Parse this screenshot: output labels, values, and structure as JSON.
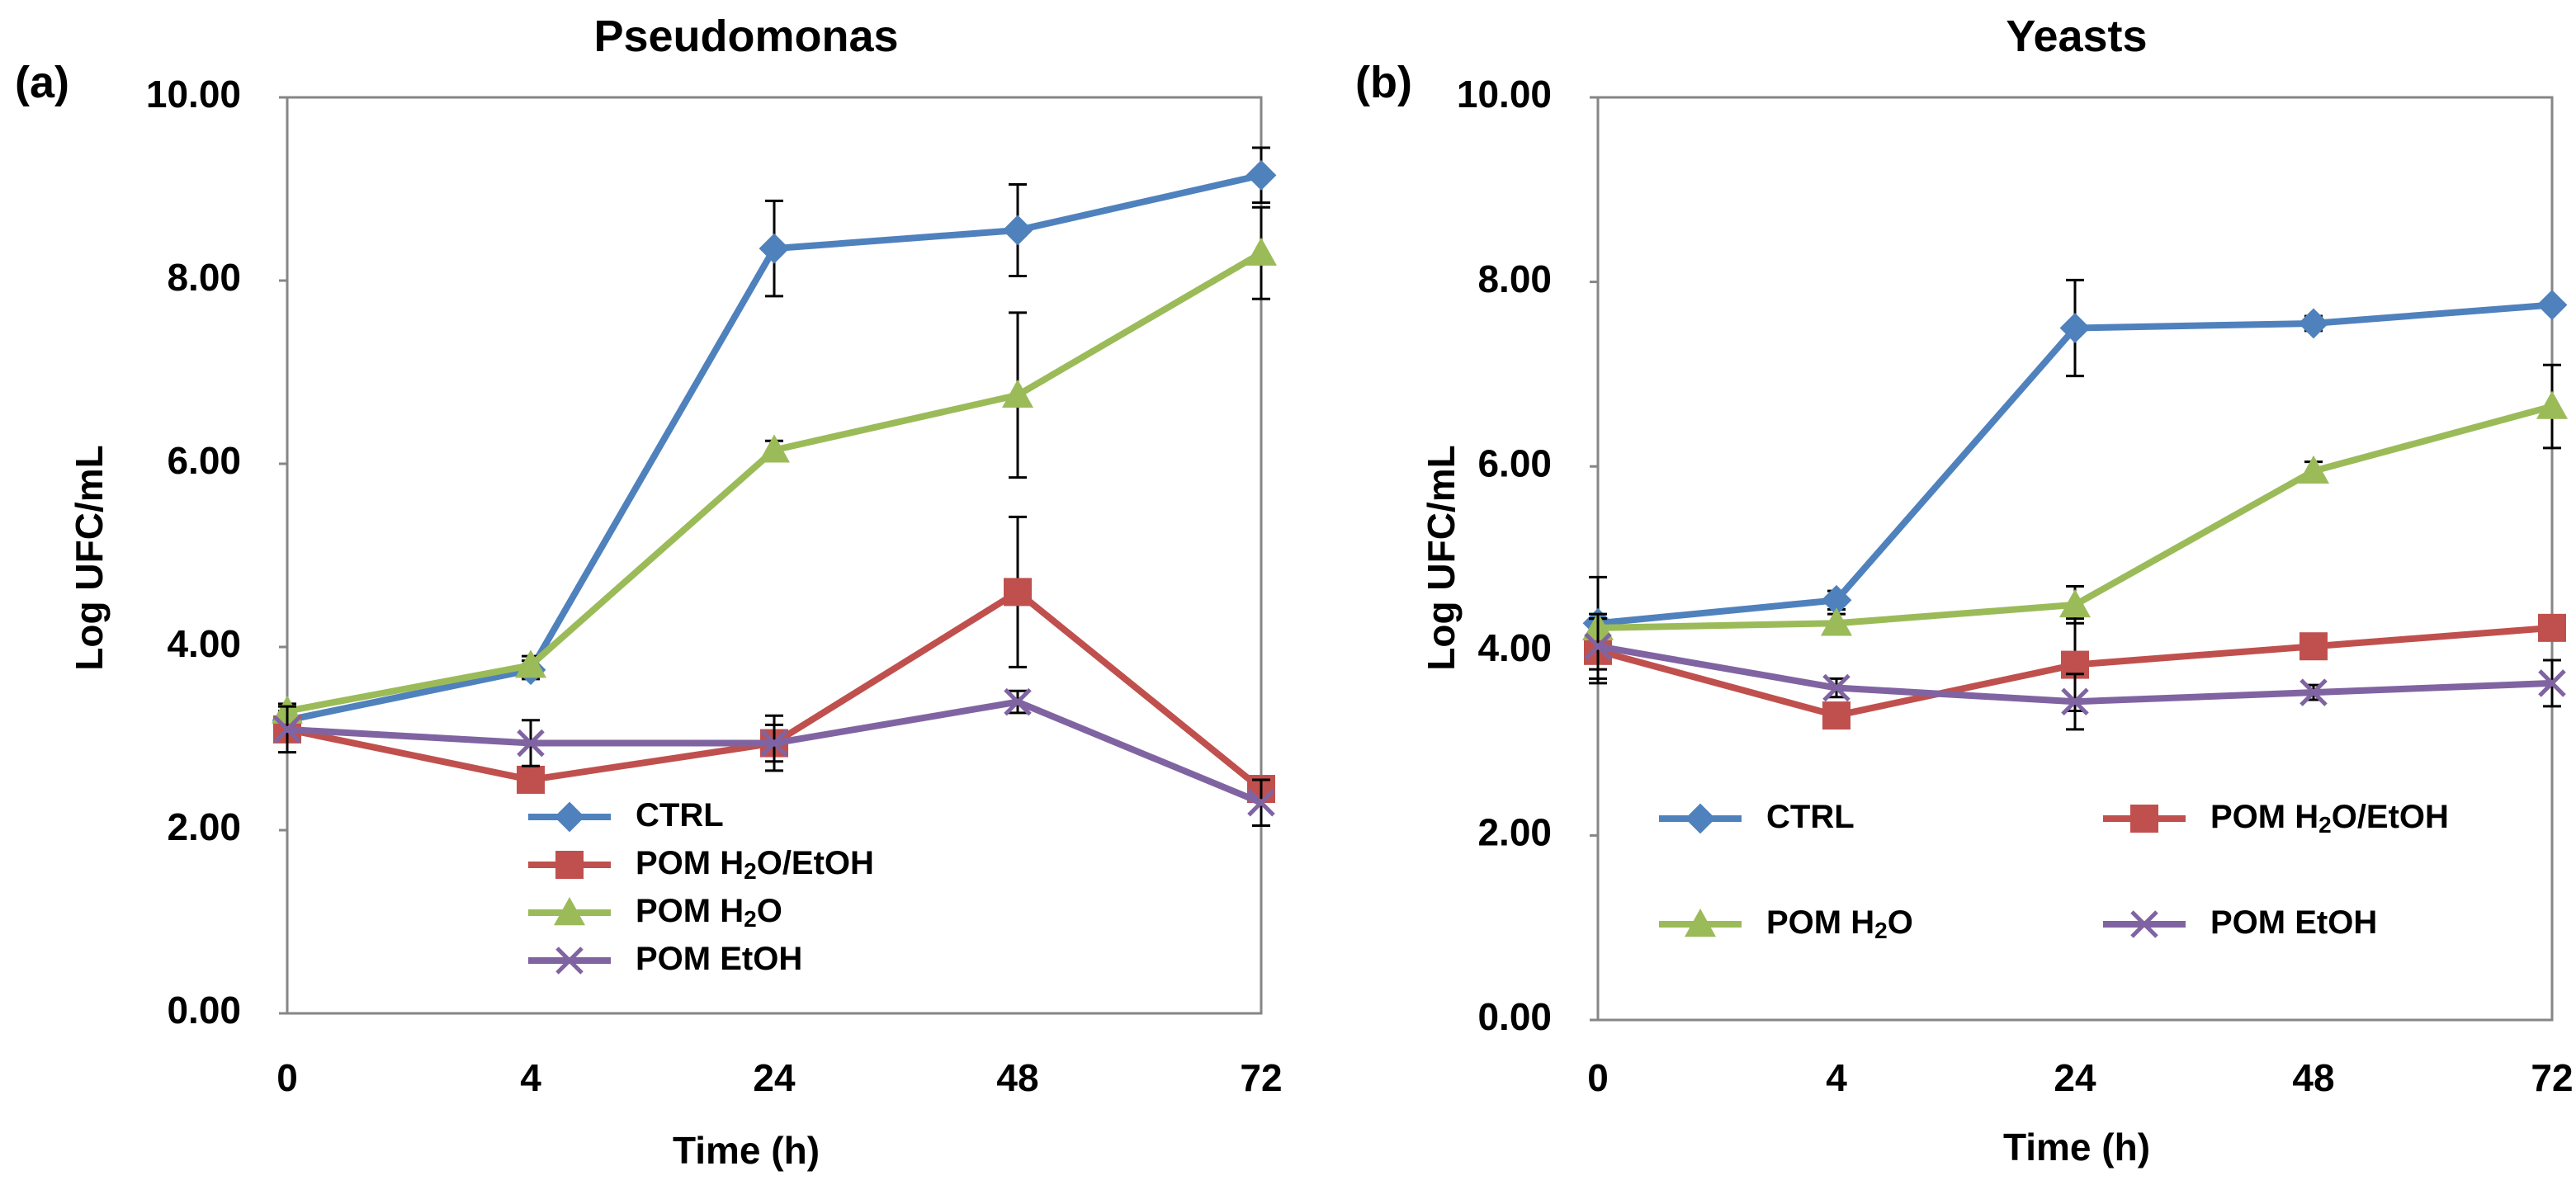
{
  "chart_data": [
    {
      "type": "line",
      "panel_label": "(a)",
      "title": "Pseudomonas",
      "xlabel": "Time (h)",
      "ylabel": "Log UFC/mL",
      "categories": [
        "0",
        "4",
        "24",
        "48",
        "72"
      ],
      "ylim": [
        0,
        10
      ],
      "yticks": [
        "0.00",
        "2.00",
        "4.00",
        "6.00",
        "8.00",
        "10.00"
      ],
      "legend_position": "bottom-center",
      "legend_layout": "single-column",
      "series": [
        {
          "name": "CTRL",
          "legend": {
            "main": "CTRL"
          },
          "color": "#4F81BD",
          "marker": "diamond",
          "values": [
            3.2,
            3.75,
            8.35,
            8.55,
            9.15
          ],
          "errors": [
            0.1,
            0.1,
            0.52,
            0.5,
            0.3
          ]
        },
        {
          "name": "POM H2O/EtOH",
          "legend": {
            "main": "POM H",
            "sub": "2",
            "rest": "O/EtOH"
          },
          "color": "#C0504D",
          "marker": "square",
          "values": [
            3.1,
            2.55,
            2.95,
            4.6,
            2.45
          ],
          "errors": [
            0.1,
            0.12,
            0.3,
            0.82,
            0.1
          ]
        },
        {
          "name": "POM H2O",
          "legend": {
            "main": "POM H",
            "sub": "2",
            "rest": "O"
          },
          "color": "#9BBB59",
          "marker": "triangle",
          "values": [
            3.3,
            3.8,
            6.15,
            6.75,
            8.3
          ],
          "errors": [
            0.08,
            0.1,
            0.1,
            0.9,
            0.5
          ]
        },
        {
          "name": "POM EtOH",
          "legend": {
            "main": "POM EtOH"
          },
          "color": "#8064A2",
          "marker": "x",
          "values": [
            3.1,
            2.95,
            2.95,
            3.4,
            2.3
          ],
          "errors": [
            0.25,
            0.25,
            0.2,
            0.12,
            0.25
          ]
        }
      ]
    },
    {
      "type": "line",
      "panel_label": "(b)",
      "title": "Yeasts",
      "xlabel": "Time (h)",
      "ylabel": "Log UFC/mL",
      "categories": [
        "0",
        "4",
        "24",
        "48",
        "72"
      ],
      "ylim": [
        0,
        10
      ],
      "yticks": [
        "0.00",
        "2.00",
        "4.00",
        "6.00",
        "8.00",
        "10.00"
      ],
      "legend_position": "bottom",
      "legend_layout": "two-column",
      "series": [
        {
          "name": "CTRL",
          "legend": {
            "main": "CTRL"
          },
          "color": "#4F81BD",
          "marker": "diamond",
          "values": [
            4.3,
            4.55,
            7.5,
            7.55,
            7.75
          ],
          "errors": [
            0.5,
            0.1,
            0.52,
            0.08,
            0.05
          ]
        },
        {
          "name": "POM H2O/EtOH",
          "legend": {
            "main": "POM H",
            "sub": "2",
            "rest": "O/EtOH"
          },
          "color": "#C0504D",
          "marker": "square",
          "values": [
            4.0,
            3.3,
            3.85,
            4.05,
            4.25
          ],
          "errors": [
            0.35,
            0.1,
            0.5,
            0.1,
            0.1
          ]
        },
        {
          "name": "POM H2O",
          "legend": {
            "main": "POM H",
            "sub": "2",
            "rest": "O"
          },
          "color": "#9BBB59",
          "marker": "triangle",
          "values": [
            4.25,
            4.3,
            4.5,
            5.95,
            6.65
          ],
          "errors": [
            0.1,
            0.1,
            0.2,
            0.1,
            0.45
          ]
        },
        {
          "name": "POM EtOH",
          "legend": {
            "main": "POM EtOH"
          },
          "color": "#8064A2",
          "marker": "x",
          "values": [
            4.05,
            3.6,
            3.45,
            3.55,
            3.65
          ],
          "errors": [
            0.35,
            0.1,
            0.3,
            0.08,
            0.25
          ]
        }
      ]
    }
  ]
}
